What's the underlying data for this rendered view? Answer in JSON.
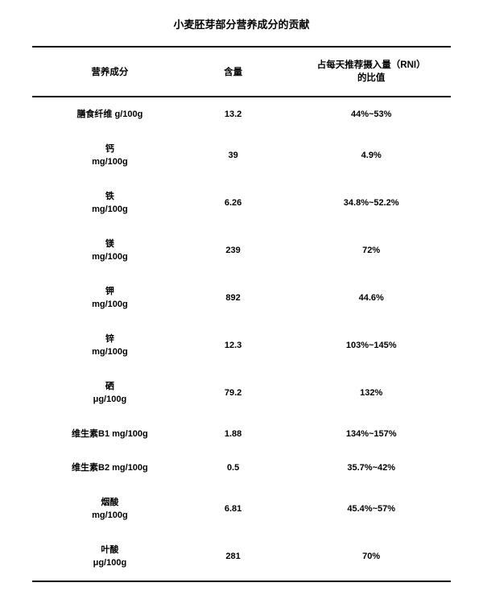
{
  "title": "小麦胚芽部分营养成分的贡献",
  "table": {
    "columns": [
      "营养成分",
      "含量",
      "占每天推荐摄入量（RNI）\n的比值"
    ],
    "rows": [
      {
        "name": "膳食纤维 g/100g",
        "amount": "13.2",
        "rni": "44%~53%"
      },
      {
        "name": "钙\nmg/100g",
        "amount": "39",
        "rni": "4.9%"
      },
      {
        "name": "铁\nmg/100g",
        "amount": "6.26",
        "rni": "34.8%~52.2%"
      },
      {
        "name": "镁\nmg/100g",
        "amount": "239",
        "rni": "72%"
      },
      {
        "name": "钾\nmg/100g",
        "amount": "892",
        "rni": "44.6%"
      },
      {
        "name": "锌\nmg/100g",
        "amount": "12.3",
        "rni": "103%~145%"
      },
      {
        "name": "硒\nμg/100g",
        "amount": "79.2",
        "rni": "132%"
      },
      {
        "name": "维生素B1 mg/100g",
        "amount": "1.88",
        "rni": "134%~157%"
      },
      {
        "name": "维生素B2 mg/100g",
        "amount": "0.5",
        "rni": "35.7%~42%"
      },
      {
        "name": "烟酸\nmg/100g",
        "amount": "6.81",
        "rni": "45.4%~57%"
      },
      {
        "name": "叶酸\nμg/100g",
        "amount": "281",
        "rni": "70%"
      }
    ]
  },
  "styling": {
    "background_color": "#ffffff",
    "text_color": "#000000",
    "border_color": "#000000",
    "title_fontsize": 13,
    "header_fontsize": 11.5,
    "cell_fontsize": 11,
    "font_family": "Microsoft YaHei",
    "border_width": 2
  }
}
